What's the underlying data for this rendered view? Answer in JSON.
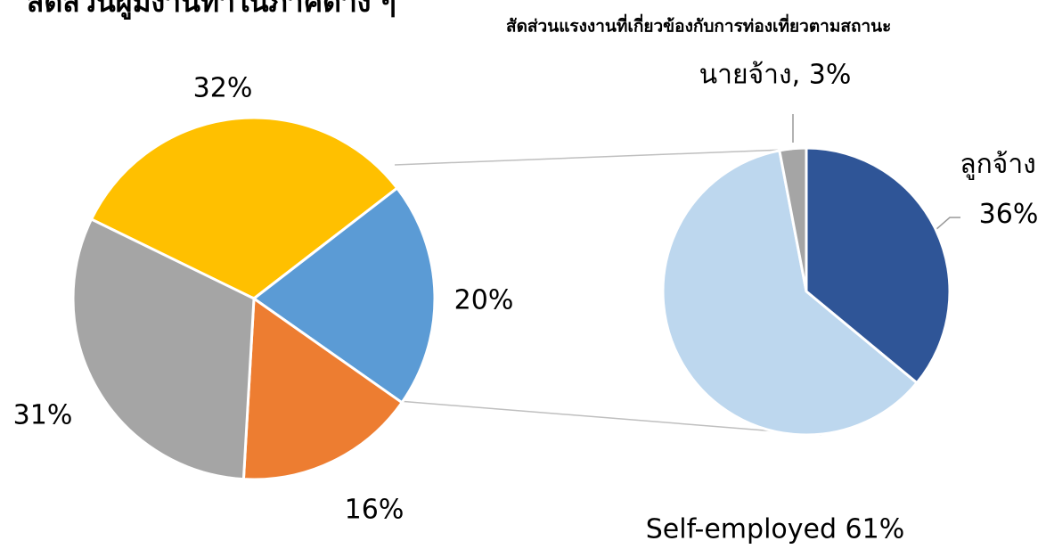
{
  "chart_data": [
    {
      "type": "pie",
      "title": "สัดส่วนผู้มีงานทำในภาคต่าง ๆ",
      "values": [
        32,
        20,
        16,
        31
      ],
      "value_labels": [
        "32%",
        "20%",
        "16%",
        "31%"
      ],
      "colors": [
        "#ffc000",
        "#5b9bd5",
        "#ed7d31",
        "#a5a5a5"
      ]
    },
    {
      "type": "pie",
      "title": "สัดส่วนแรงงานที่เกี่ยวข้องกับการท่องเที่ยวตามสถานะ",
      "values": [
        36,
        61,
        3
      ],
      "value_labels": [
        "ลูกจ้าง 36%",
        "Self-employed 61%",
        "นายจ้าง, 3%"
      ],
      "colors": [
        "#2f5597",
        "#bdd7ee",
        "#a5a5a5"
      ]
    }
  ]
}
